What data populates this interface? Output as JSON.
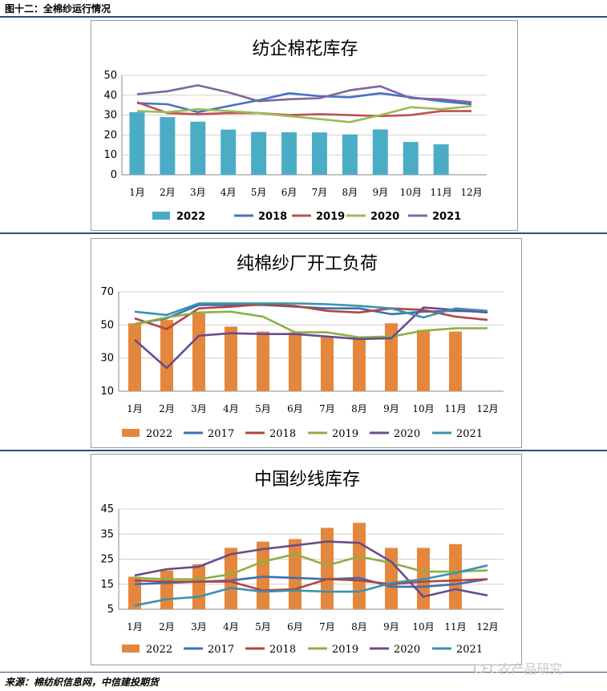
{
  "figure_title": "图十二：全棉纱运行情况",
  "source": "来源：棉纺织信息网，中信建投期货",
  "watermark": "CFC农产品研究",
  "colors": {
    "rule": "#2b4f7e",
    "grid": "#d0d0d0",
    "axis": "#888888"
  },
  "chart_data": [
    {
      "type": "bar+line",
      "title": "纺企棉花库存",
      "categories": [
        "1月",
        "2月",
        "3月",
        "4月",
        "5月",
        "6月",
        "7月",
        "8月",
        "9月",
        "10月",
        "11月",
        "12月"
      ],
      "ylim": [
        0,
        50
      ],
      "yticks": [
        0,
        10,
        20,
        30,
        40,
        50
      ],
      "grid": true,
      "legend_position": "bottom",
      "bar_series": {
        "name": "2022",
        "color": "#4bacc6",
        "values": [
          31.5,
          29,
          26.7,
          22.7,
          21.5,
          21.4,
          21.3,
          20.3,
          22.8,
          16.5,
          15.3,
          null
        ]
      },
      "series": [
        {
          "name": "2018",
          "color": "#4472c4",
          "values": [
            36,
            35.5,
            31.5,
            34.5,
            37.5,
            41,
            39.5,
            39,
            41,
            39,
            37,
            35.5
          ]
        },
        {
          "name": "2019",
          "color": "#c0504d",
          "values": [
            36.5,
            31,
            30.5,
            31,
            31,
            30,
            30.5,
            30,
            29.5,
            30,
            32,
            32
          ]
        },
        {
          "name": "2020",
          "color": "#9bbb59",
          "values": [
            32,
            31.5,
            33,
            32,
            31,
            29.5,
            28,
            26.5,
            30,
            34,
            33,
            34.5
          ]
        },
        {
          "name": "2021",
          "color": "#8064a2",
          "values": [
            40.5,
            42,
            45,
            41.5,
            37,
            38,
            38.5,
            42.5,
            44.5,
            38.5,
            38,
            36.5
          ]
        }
      ]
    },
    {
      "type": "bar+line",
      "title": "纯棉纱厂开工负荷",
      "categories": [
        "1月",
        "2月",
        "3月",
        "4月",
        "5月",
        "6月",
        "7月",
        "8月",
        "9月",
        "10月",
        "11月",
        "12月"
      ],
      "ylim": [
        10,
        70
      ],
      "yticks": [
        10,
        30,
        50,
        70
      ],
      "grid": true,
      "legend_position": "bottom",
      "bar_series": {
        "name": "2022",
        "color": "#e4873d",
        "values": [
          51,
          53,
          57,
          49,
          46,
          45.5,
          43,
          42,
          51,
          47,
          46,
          null
        ]
      },
      "series": [
        {
          "name": "2017",
          "color": "#3d6fb1",
          "values": [
            50.5,
            54,
            62,
            62,
            62,
            61,
            60,
            60,
            56.5,
            58,
            58.5,
            58
          ]
        },
        {
          "name": "2018",
          "color": "#b0463f",
          "values": [
            54,
            47.5,
            60,
            61,
            62.5,
            61.5,
            58.5,
            57.5,
            60,
            59,
            55,
            53
          ]
        },
        {
          "name": "2019",
          "color": "#8caf46",
          "values": [
            50.5,
            54.5,
            57.5,
            58,
            55,
            45.5,
            45.5,
            42.5,
            43,
            46.5,
            48,
            48
          ]
        },
        {
          "name": "2020",
          "color": "#6b4b8e",
          "values": [
            41,
            24,
            43.5,
            45,
            44.5,
            44.5,
            43,
            41.5,
            42,
            60.5,
            59,
            57.5
          ]
        },
        {
          "name": "2021",
          "color": "#3b92ae",
          "values": [
            58,
            56,
            63,
            63,
            63,
            63,
            62.5,
            61.5,
            60,
            54.5,
            60,
            58.5
          ]
        }
      ]
    },
    {
      "type": "bar+line",
      "title": "中国纱线库存",
      "categories": [
        "1月",
        "2月",
        "3月",
        "4月",
        "5月",
        "6月",
        "7月",
        "8月",
        "9月",
        "10月",
        "11月",
        "12月"
      ],
      "ylim": [
        5,
        45
      ],
      "yticks": [
        5,
        15,
        25,
        35,
        45
      ],
      "grid": true,
      "legend_position": "bottom",
      "bar_series": {
        "name": "2022",
        "color": "#e4873d",
        "values": [
          18,
          20.5,
          23,
          29.5,
          32,
          33,
          37.5,
          39.5,
          29.5,
          29.5,
          31,
          null
        ]
      },
      "series": [
        {
          "name": "2017",
          "color": "#3d6fb1",
          "values": [
            15,
            15.5,
            16,
            16.5,
            18,
            17.5,
            17,
            17.5,
            14,
            14,
            15,
            17
          ]
        },
        {
          "name": "2018",
          "color": "#b0463f",
          "values": [
            16.5,
            16,
            16,
            16,
            12.5,
            13,
            17,
            16.5,
            15,
            16,
            16.5,
            17
          ]
        },
        {
          "name": "2019",
          "color": "#8caf46",
          "values": [
            17.5,
            17,
            17,
            19,
            24,
            27,
            22.5,
            26,
            23.5,
            20,
            20,
            20.5
          ]
        },
        {
          "name": "2020",
          "color": "#6b4b8e",
          "values": [
            18.5,
            21,
            22,
            27,
            29,
            30.5,
            32,
            31.5,
            24,
            10,
            13,
            10.5
          ]
        },
        {
          "name": "2021",
          "color": "#3b92ae",
          "values": [
            6.5,
            9,
            10,
            13.5,
            12,
            12.5,
            12,
            12,
            15.5,
            17,
            19.5,
            22.5
          ]
        }
      ]
    }
  ]
}
